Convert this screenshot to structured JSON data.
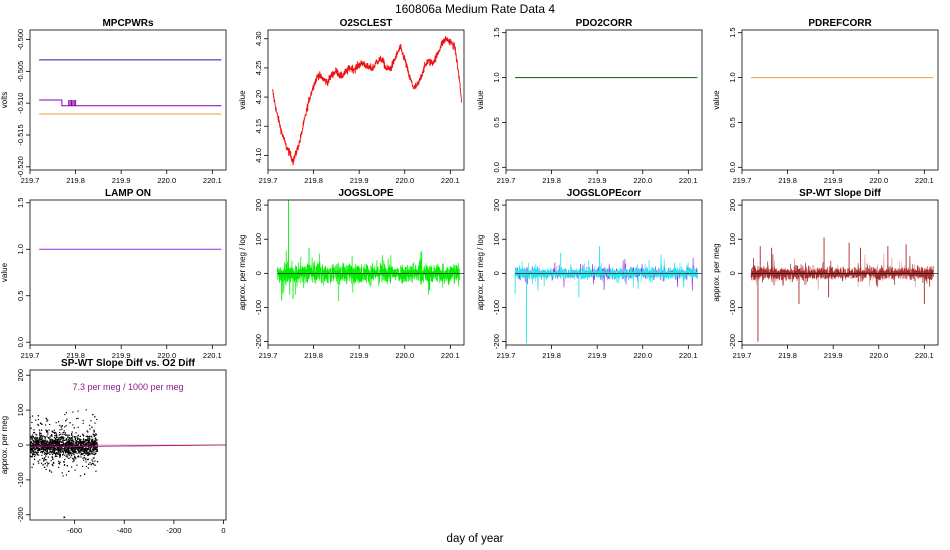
{
  "figure": {
    "title": "160806a   Medium Rate Data 4",
    "xlabel": "day of year"
  },
  "chart_data": [
    {
      "type": "line",
      "title": "MPCPWRs",
      "ylabel": "volts",
      "xlim": [
        219.7,
        220.13
      ],
      "ylim": [
        -0.5205,
        -0.4985
      ],
      "xticks": [
        219.7,
        219.8,
        219.9,
        220.0,
        220.1
      ],
      "yticks": [
        -0.5,
        -0.505,
        -0.51,
        -0.515,
        -0.52
      ],
      "ytick_labels": [
        "-0.500",
        "-0.505",
        "-0.510",
        "-0.515",
        "-0.520"
      ],
      "series": [
        {
          "color": "#1a1aa0",
          "x": [
            219.72,
            220.12
          ],
          "y": [
            -0.5032,
            -0.5032
          ]
        },
        {
          "color": "#8b00a8",
          "x": [
            219.72,
            219.77,
            219.77,
            220.12
          ],
          "y": [
            -0.5095,
            -0.5095,
            -0.5104,
            -0.5104
          ],
          "spikes": [
            219.785,
            219.788,
            219.791,
            219.794,
            219.797,
            219.8
          ]
        },
        {
          "color": "#e8a33a",
          "x": [
            219.72,
            220.12
          ],
          "y": [
            -0.5117,
            -0.5117
          ]
        }
      ]
    },
    {
      "type": "line",
      "title": "O2SCLEST",
      "ylabel": "value",
      "xlim": [
        219.7,
        220.13
      ],
      "ylim": [
        4.075,
        4.315
      ],
      "xticks": [
        219.7,
        219.8,
        219.9,
        220.0,
        220.1
      ],
      "yticks": [
        4.1,
        4.15,
        4.2,
        4.25,
        4.3
      ],
      "ytick_labels": [
        "4.10",
        "4.15",
        "4.20",
        "4.25",
        "4.30"
      ],
      "series": [
        {
          "color": "#ee1111",
          "noise": 0.007,
          "x": [
            219.71,
            219.715,
            219.72,
            219.73,
            219.74,
            219.75,
            219.755,
            219.76,
            219.77,
            219.78,
            219.79,
            219.8,
            219.81,
            219.82,
            219.83,
            219.84,
            219.85,
            219.86,
            219.87,
            219.88,
            219.89,
            219.9,
            219.91,
            219.92,
            219.93,
            219.94,
            219.95,
            219.96,
            219.97,
            219.98,
            219.99,
            220.0,
            220.01,
            220.02,
            220.03,
            220.04,
            220.05,
            220.06,
            220.07,
            220.08,
            220.09,
            220.1,
            220.11,
            220.12,
            220.125
          ],
          "y": [
            4.21,
            4.19,
            4.17,
            4.14,
            4.115,
            4.1,
            4.09,
            4.1,
            4.125,
            4.16,
            4.195,
            4.22,
            4.238,
            4.232,
            4.225,
            4.238,
            4.245,
            4.235,
            4.242,
            4.25,
            4.248,
            4.256,
            4.258,
            4.25,
            4.25,
            4.262,
            4.265,
            4.248,
            4.25,
            4.268,
            4.285,
            4.265,
            4.235,
            4.215,
            4.222,
            4.245,
            4.262,
            4.258,
            4.27,
            4.29,
            4.3,
            4.295,
            4.285,
            4.23,
            4.19
          ]
        }
      ]
    },
    {
      "type": "line",
      "title": "PDO2CORR",
      "ylabel": "value",
      "xlim": [
        219.7,
        220.13
      ],
      "ylim": [
        -0.03,
        1.53
      ],
      "xticks": [
        219.7,
        219.8,
        219.9,
        220.0,
        220.1
      ],
      "yticks": [
        0.0,
        0.5,
        1.0,
        1.5
      ],
      "ytick_labels": [
        "0.0",
        "0.5",
        "1.0",
        "1.5"
      ],
      "series": [
        {
          "color": "#0d5a0d",
          "x": [
            219.72,
            220.12
          ],
          "y": [
            1.0,
            1.0
          ]
        }
      ]
    },
    {
      "type": "line",
      "title": "PDREFCORR",
      "ylabel": "value",
      "xlim": [
        219.7,
        220.13
      ],
      "ylim": [
        -0.03,
        1.53
      ],
      "xticks": [
        219.7,
        219.8,
        219.9,
        220.0,
        220.1
      ],
      "yticks": [
        0.0,
        0.5,
        1.0,
        1.5
      ],
      "ytick_labels": [
        "0.0",
        "0.5",
        "1.0",
        "1.5"
      ],
      "series": [
        {
          "color": "#e8a33a",
          "x": [
            219.72,
            220.12
          ],
          "y": [
            1.0,
            1.0
          ]
        }
      ]
    },
    {
      "type": "line",
      "title": "LAMP ON",
      "ylabel": "value",
      "xlim": [
        219.7,
        220.13
      ],
      "ylim": [
        -0.03,
        1.53
      ],
      "xticks": [
        219.7,
        219.8,
        219.9,
        220.0,
        220.1
      ],
      "yticks": [
        0.0,
        0.5,
        1.0,
        1.5
      ],
      "ytick_labels": [
        "0.0",
        "0.5",
        "1.0",
        "1.5"
      ],
      "series": [
        {
          "color": "#9a2be2",
          "x": [
            219.72,
            220.12
          ],
          "y": [
            1.0,
            1.0
          ]
        }
      ]
    },
    {
      "type": "line",
      "title": "JOGSLOPE",
      "ylabel": "approx. per meg / log",
      "xlim": [
        219.7,
        220.13
      ],
      "ylim": [
        -210,
        215
      ],
      "xticks": [
        219.7,
        219.8,
        219.9,
        220.0,
        220.1
      ],
      "yticks": [
        -200,
        -100,
        0,
        100,
        200
      ],
      "ytick_labels": [
        "-200",
        "-100",
        "0",
        "100",
        "200"
      ],
      "series": [
        {
          "color": "#00ee00",
          "x_range": [
            219.72,
            220.12
          ],
          "amplitude": 32,
          "spikes": [
            [
              219.745,
              215
            ],
            [
              219.73,
              -80
            ],
            [
              219.755,
              -75
            ],
            [
              219.79,
              75
            ]
          ]
        }
      ]
    },
    {
      "type": "line",
      "title": "JOGSLOPEcorr",
      "ylabel": "approx. per meg / log",
      "xlim": [
        219.7,
        220.13
      ],
      "ylim": [
        -210,
        215
      ],
      "xticks": [
        219.7,
        219.8,
        219.9,
        220.0,
        220.1
      ],
      "yticks": [
        -200,
        -100,
        0,
        100,
        200
      ],
      "ytick_labels": [
        "-200",
        "-100",
        "0",
        "100",
        "200"
      ],
      "series": [
        {
          "color": "#22e6ee",
          "secondary_color": "#9a2be2",
          "x_range": [
            219.72,
            220.12
          ],
          "amplitude": 18,
          "spikes": [
            [
              219.745,
              -205
            ],
            [
              219.72,
              -60
            ],
            [
              219.77,
              -50
            ],
            [
              219.82,
              60
            ],
            [
              219.86,
              -70
            ],
            [
              219.905,
              80
            ],
            [
              219.99,
              -45
            ],
            [
              220.04,
              55
            ],
            [
              220.09,
              -40
            ]
          ]
        }
      ]
    },
    {
      "type": "line",
      "title": "SP-WT Slope Diff",
      "ylabel": "approx. per meg",
      "xlim": [
        219.7,
        220.13
      ],
      "ylim": [
        -210,
        215
      ],
      "xticks": [
        219.7,
        219.8,
        219.9,
        220.0,
        220.1
      ],
      "yticks": [
        -200,
        -100,
        0,
        100,
        200
      ],
      "ytick_labels": [
        "-200",
        "-100",
        "0",
        "100",
        "200"
      ],
      "series": [
        {
          "color": "#a52a2a",
          "secondary_color": "#e0a0a0",
          "x_range": [
            219.72,
            220.12
          ],
          "amplitude": 20,
          "spikes": [
            [
              219.735,
              -200
            ],
            [
              219.74,
              80
            ],
            [
              219.765,
              75
            ],
            [
              219.825,
              -90
            ],
            [
              219.88,
              105
            ],
            [
              219.89,
              -70
            ],
            [
              219.935,
              90
            ],
            [
              219.96,
              75
            ],
            [
              220.02,
              80
            ],
            [
              220.06,
              85
            ],
            [
              220.1,
              -90
            ]
          ]
        }
      ]
    },
    {
      "type": "scatter",
      "title": "SP-WT Slope Diff vs. O2 Diff",
      "ylabel": "approx. per meg",
      "annotation": "7.3 per meg / 1000 per meg",
      "xlim": [
        -780,
        10
      ],
      "ylim": [
        -215,
        215
      ],
      "xticks": [
        -600,
        -400,
        -200,
        0
      ],
      "yticks": [
        -200,
        -100,
        0,
        100,
        200
      ],
      "ytick_labels": [
        "-200",
        "-100",
        "0",
        "100",
        "200"
      ],
      "point_color": "#000000",
      "cluster": {
        "x_range": [
          -790,
          -510
        ],
        "y_sd": 14,
        "y_outlier_range": [
          -95,
          105
        ]
      },
      "outliers": [
        [
          -645,
          -205
        ]
      ],
      "fit": {
        "color": "#8b1a8b",
        "slope": 0.0073,
        "intercept": 0,
        "x_range": [
          -780,
          10
        ]
      }
    }
  ]
}
